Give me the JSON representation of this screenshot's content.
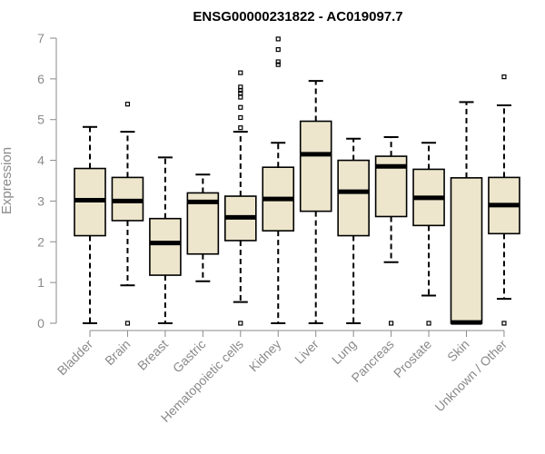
{
  "chart_data": {
    "type": "boxplot",
    "title": "ENSG00000231822 - AC019097.7",
    "xlabel": "",
    "ylabel": "Expression",
    "ylim": [
      0,
      7
    ],
    "yticks": [
      0,
      1,
      2,
      3,
      4,
      5,
      6,
      7
    ],
    "categories": [
      "Bladder",
      "Brain",
      "Breast",
      "Gastric",
      "Hematopoietic cells",
      "Kidney",
      "Liver",
      "Lung",
      "Pancreas",
      "Prostate",
      "Skin",
      "Unknown / Other"
    ],
    "boxes": [
      {
        "min": 0.0,
        "q1": 2.15,
        "median": 3.02,
        "q3": 3.8,
        "max": 4.82,
        "outliers": []
      },
      {
        "min": 0.93,
        "q1": 2.52,
        "median": 3.0,
        "q3": 3.58,
        "max": 4.7,
        "outliers": [
          0.0,
          5.38
        ]
      },
      {
        "min": 0.0,
        "q1": 1.18,
        "median": 1.97,
        "q3": 2.57,
        "max": 4.07,
        "outliers": []
      },
      {
        "min": 1.03,
        "q1": 1.7,
        "median": 2.98,
        "q3": 3.2,
        "max": 3.65,
        "outliers": []
      },
      {
        "min": 0.52,
        "q1": 2.03,
        "median": 2.6,
        "q3": 3.12,
        "max": 4.7,
        "outliers": [
          0.0,
          4.8,
          5.05,
          5.3,
          5.55,
          5.65,
          5.72,
          5.8,
          6.15
        ]
      },
      {
        "min": 0.0,
        "q1": 2.27,
        "median": 3.05,
        "q3": 3.83,
        "max": 4.43,
        "outliers": [
          6.35,
          6.42,
          6.72,
          6.98
        ]
      },
      {
        "min": 0.0,
        "q1": 2.75,
        "median": 4.15,
        "q3": 4.96,
        "max": 5.95,
        "outliers": []
      },
      {
        "min": 0.0,
        "q1": 2.15,
        "median": 3.23,
        "q3": 4.0,
        "max": 4.53,
        "outliers": []
      },
      {
        "min": 1.5,
        "q1": 2.62,
        "median": 3.85,
        "q3": 4.1,
        "max": 4.57,
        "outliers": [
          0.0
        ]
      },
      {
        "min": 0.68,
        "q1": 2.4,
        "median": 3.08,
        "q3": 3.78,
        "max": 4.43,
        "outliers": [
          0.0
        ]
      },
      {
        "min": 0.0,
        "q1": 0.0,
        "median": 0.02,
        "q3": 3.57,
        "max": 5.43,
        "outliers": []
      },
      {
        "min": 0.6,
        "q1": 2.2,
        "median": 2.9,
        "q3": 3.58,
        "max": 5.35,
        "outliers": [
          0.0,
          6.05
        ]
      }
    ],
    "colors": {
      "box_fill": "#ede6cc",
      "stroke": "#000000",
      "axis": "#8a8a8a"
    },
    "grid": false,
    "legend": "none"
  }
}
